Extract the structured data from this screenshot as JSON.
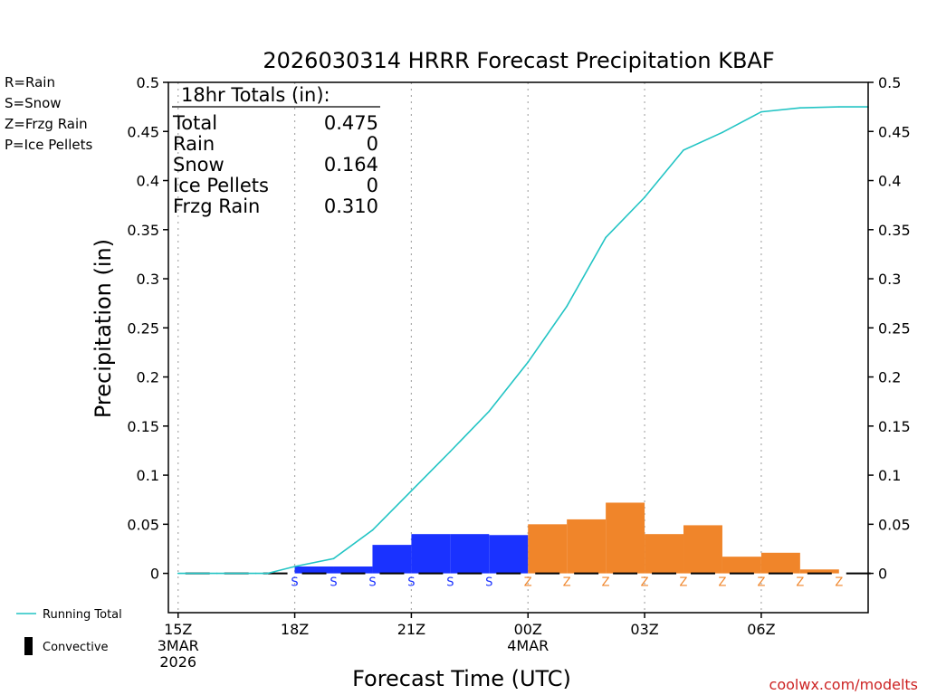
{
  "chart_data": {
    "type": "bar",
    "title": "2026030314 HRRR Forecast Precipitation KBAF",
    "xlabel": "Forecast Time (UTC)",
    "ylabel": "Precipitation (in)",
    "ylim": [
      -0.04,
      0.5
    ],
    "xlim": [
      -0.25,
      17.75
    ],
    "yticks": [
      0,
      0.05,
      0.1,
      0.15,
      0.2,
      0.25,
      0.3,
      0.35,
      0.4,
      0.45,
      0.5
    ],
    "ytick_labels": [
      "0",
      "0.05",
      "0.1",
      "0.15",
      "0.2",
      "0.25",
      "0.3",
      "0.35",
      "0.4",
      "0.45",
      "0.5"
    ],
    "xticks": [
      {
        "x": 0,
        "lines": [
          "15Z",
          "3MAR",
          "2026"
        ]
      },
      {
        "x": 3,
        "lines": [
          "18Z"
        ]
      },
      {
        "x": 6,
        "lines": [
          "21Z"
        ]
      },
      {
        "x": 9,
        "lines": [
          "00Z",
          "4MAR"
        ]
      },
      {
        "x": 12,
        "lines": [
          "03Z"
        ]
      },
      {
        "x": 15,
        "lines": [
          "06Z"
        ]
      }
    ],
    "hours": [
      1,
      2,
      3,
      4,
      5,
      6,
      7,
      8,
      9,
      10,
      11,
      12,
      13,
      14,
      15,
      16,
      17,
      18
    ],
    "hourly_values": [
      0.0,
      0.0,
      0.0,
      0.007,
      0.007,
      0.029,
      0.04,
      0.04,
      0.039,
      0.05,
      0.055,
      0.072,
      0.04,
      0.049,
      0.017,
      0.021,
      0.004,
      0.0
    ],
    "ptypes": [
      "",
      "",
      "",
      "S",
      "S",
      "S",
      "S",
      "S",
      "S",
      "Z",
      "Z",
      "Z",
      "Z",
      "Z",
      "Z",
      "Z",
      "Z",
      "Z"
    ],
    "running_total": {
      "name": "Running Total",
      "x": [
        0,
        1,
        2,
        2.3,
        3,
        4,
        5,
        6,
        7,
        8,
        9,
        10,
        11,
        12,
        13,
        14,
        15,
        16,
        17,
        17.75
      ],
      "y": [
        0,
        0,
        0,
        0.0,
        0.007,
        0.015,
        0.044,
        0.084,
        0.124,
        0.165,
        0.215,
        0.272,
        0.342,
        0.383,
        0.431,
        0.449,
        0.47,
        0.474,
        0.475,
        0.475
      ]
    },
    "colors": {
      "S": "#1a32ff",
      "Z": "#f0852a",
      "line": "#22c4c4",
      "convective": "#000000"
    },
    "legend": [
      {
        "code": "R",
        "label": "R=Rain",
        "color": "#22cc22"
      },
      {
        "code": "S",
        "label": "S=Snow",
        "color": "#3344ee"
      },
      {
        "code": "Z",
        "label": "Z=Frzg Rain",
        "color": "#f0852a"
      },
      {
        "code": "P",
        "label": "P=Ice Pellets",
        "color": "#ee22aa"
      }
    ],
    "bottom_legend": [
      {
        "label": "Running Total",
        "kind": "line"
      },
      {
        "label": "Convective",
        "kind": "bar"
      }
    ],
    "totals": {
      "header": "18hr Totals (in):",
      "rows": [
        {
          "name": "Total",
          "value": "0.475"
        },
        {
          "name": "Rain",
          "value": "0"
        },
        {
          "name": "Snow",
          "value": "0.164"
        },
        {
          "name": "Ice Pellets",
          "value": "0"
        },
        {
          "name": "Frzg Rain",
          "value": "0.310"
        }
      ]
    },
    "credit": "coolwx.com/modelts"
  }
}
